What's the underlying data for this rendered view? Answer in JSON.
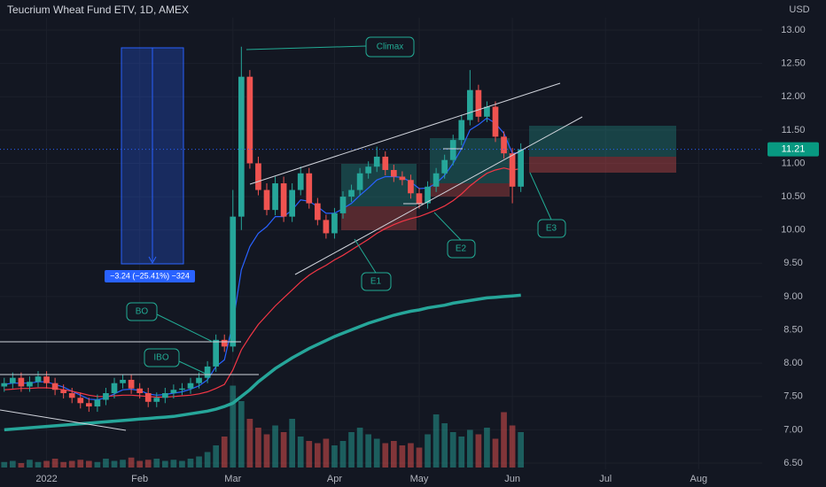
{
  "chart_data": {
    "type": "candlestick",
    "title": "Teucrium Wheat Fund ETV, 1D, AMEX",
    "currency": "USD",
    "last_price": 11.21,
    "annotations": [
      "Climax",
      "BO",
      "IBO",
      "E1",
      "E2",
      "E3"
    ],
    "measure_label": "−3.24 (−25.41%) −324",
    "categories": [
      null,
      null,
      null,
      null,
      null,
      "2022",
      null,
      null,
      null,
      null,
      null,
      null,
      null,
      null,
      null,
      null,
      "Feb",
      null,
      null,
      null,
      null,
      null,
      null,
      null,
      null,
      null,
      null,
      "Mar",
      null,
      null,
      null,
      null,
      null,
      null,
      null,
      null,
      null,
      null,
      null,
      "Apr",
      null,
      null,
      null,
      null,
      null,
      null,
      null,
      null,
      null,
      "May",
      null,
      null,
      null,
      null,
      null,
      null,
      null,
      null,
      null,
      null,
      "Jun",
      null,
      null,
      null,
      null,
      null,
      null,
      null,
      null,
      null,
      null,
      "Jul",
      null,
      null,
      null,
      null,
      null,
      null,
      null,
      null,
      null,
      null,
      "Aug",
      null,
      null,
      null,
      null,
      null,
      null,
      null
    ],
    "open": [
      7.65,
      7.7,
      7.78,
      7.65,
      7.72,
      7.8,
      7.7,
      7.6,
      7.55,
      7.48,
      7.4,
      7.35,
      7.45,
      7.55,
      7.7,
      7.75,
      7.62,
      7.55,
      7.42,
      7.48,
      7.55,
      7.6,
      7.62,
      7.7,
      7.78,
      7.95,
      8.35,
      8.25,
      10.2,
      12.3,
      11.0,
      10.6,
      10.3,
      10.7,
      10.2,
      10.6,
      10.85,
      10.4,
      10.15,
      9.95,
      10.25,
      10.5,
      10.6,
      10.85,
      10.95,
      11.1,
      10.9,
      10.8,
      10.75,
      10.55,
      10.4,
      10.65,
      10.85,
      11.05,
      11.35,
      11.65,
      12.1,
      11.7,
      11.85,
      11.4,
      11.15,
      10.65,
      null,
      null,
      null,
      null,
      null,
      null,
      null,
      null,
      null,
      null,
      null,
      null,
      null,
      null,
      null,
      null,
      null,
      null,
      null,
      null,
      null,
      null,
      null,
      null,
      null,
      null,
      null,
      null
    ],
    "high": [
      7.78,
      7.86,
      7.86,
      7.8,
      7.88,
      7.88,
      7.78,
      7.68,
      7.63,
      7.56,
      7.48,
      7.53,
      7.63,
      7.78,
      7.83,
      7.83,
      7.7,
      7.63,
      7.56,
      7.63,
      7.68,
      7.7,
      7.78,
      7.86,
      8.03,
      8.43,
      8.43,
      10.6,
      12.75,
      12.4,
      11.1,
      10.7,
      10.8,
      10.8,
      10.7,
      10.95,
      10.93,
      10.48,
      10.23,
      10.33,
      10.58,
      10.68,
      10.93,
      11.03,
      11.25,
      11.18,
      10.98,
      10.88,
      10.83,
      10.63,
      10.73,
      10.93,
      11.13,
      11.43,
      11.73,
      12.4,
      12.18,
      11.93,
      11.93,
      11.48,
      11.23,
      11.3,
      null,
      null,
      null,
      null,
      null,
      null,
      null,
      null,
      null,
      null,
      null,
      null,
      null,
      null,
      null,
      null,
      null,
      null,
      null,
      null,
      null,
      null,
      null,
      null,
      null,
      null,
      null,
      null
    ],
    "low": [
      7.57,
      7.62,
      7.57,
      7.57,
      7.64,
      7.62,
      7.52,
      7.47,
      7.4,
      7.32,
      7.27,
      7.27,
      7.37,
      7.47,
      7.62,
      7.54,
      7.47,
      7.34,
      7.34,
      7.4,
      7.47,
      7.52,
      7.54,
      7.62,
      7.7,
      7.87,
      8.17,
      8.17,
      10.0,
      10.92,
      10.52,
      10.22,
      10.22,
      10.12,
      10.12,
      10.52,
      10.32,
      10.07,
      9.87,
      9.87,
      10.17,
      10.42,
      10.52,
      10.77,
      10.87,
      10.82,
      10.72,
      10.67,
      10.47,
      10.32,
      10.32,
      10.57,
      10.77,
      10.97,
      11.27,
      11.57,
      11.62,
      11.62,
      11.32,
      11.07,
      10.4,
      10.57,
      null,
      null,
      null,
      null,
      null,
      null,
      null,
      null,
      null,
      null,
      null,
      null,
      null,
      null,
      null,
      null,
      null,
      null,
      null,
      null,
      null,
      null,
      null,
      null,
      null,
      null,
      null,
      null
    ],
    "close": [
      7.7,
      7.78,
      7.65,
      7.72,
      7.8,
      7.7,
      7.6,
      7.55,
      7.48,
      7.4,
      7.35,
      7.45,
      7.55,
      7.7,
      7.75,
      7.62,
      7.55,
      7.42,
      7.48,
      7.55,
      7.6,
      7.62,
      7.7,
      7.78,
      7.95,
      8.35,
      8.25,
      10.2,
      12.3,
      11.0,
      10.6,
      10.3,
      10.7,
      10.2,
      10.6,
      10.85,
      10.4,
      10.15,
      9.95,
      10.25,
      10.5,
      10.6,
      10.85,
      10.95,
      11.1,
      10.9,
      10.8,
      10.75,
      10.55,
      10.4,
      10.65,
      10.85,
      11.05,
      11.35,
      11.65,
      12.1,
      11.7,
      11.85,
      11.4,
      11.15,
      10.65,
      11.21,
      null,
      null,
      null,
      null,
      null,
      null,
      null,
      null,
      null,
      null,
      null,
      null,
      null,
      null,
      null,
      null,
      null,
      null,
      null,
      null,
      null,
      null,
      null,
      null,
      null,
      null,
      null,
      null
    ],
    "volume": [
      250000,
      300000,
      200000,
      350000,
      250000,
      300000,
      400000,
      250000,
      300000,
      350000,
      300000,
      250000,
      400000,
      300000,
      350000,
      450000,
      300000,
      350000,
      400000,
      300000,
      350000,
      300000,
      400000,
      500000,
      700000,
      1000000,
      1400000,
      3700000,
      3000000,
      2200000,
      1800000,
      1500000,
      1900000,
      1600000,
      2200000,
      1400000,
      1200000,
      1100000,
      1300000,
      1000000,
      1200000,
      1600000,
      1800000,
      1500000,
      1300000,
      1100000,
      1200000,
      1000000,
      1100000,
      900000,
      1500000,
      2400000,
      2000000,
      1600000,
      1400000,
      1700000,
      1500000,
      1800000,
      1300000,
      2500000,
      1900000,
      1600000,
      null,
      null,
      null,
      null,
      null,
      null,
      null,
      null,
      null,
      null,
      null,
      null,
      null,
      null,
      null,
      null,
      null,
      null,
      null,
      null,
      null,
      null,
      null,
      null,
      null,
      null,
      null,
      null
    ],
    "volume_lim": [
      0,
      4000000
    ],
    "up_color": "#26a69a",
    "down_color": "#ef5350",
    "series": [
      {
        "color": "#2962ff",
        "values": [
          7.68,
          7.7,
          7.7,
          7.7,
          7.72,
          7.72,
          7.68,
          7.64,
          7.58,
          7.52,
          7.46,
          7.45,
          7.48,
          7.54,
          7.6,
          7.61,
          7.59,
          7.54,
          7.52,
          7.53,
          7.55,
          7.57,
          7.61,
          7.66,
          7.75,
          7.95,
          8.05,
          8.6,
          9.4,
          9.75,
          9.95,
          10.05,
          10.2,
          10.2,
          10.3,
          10.45,
          10.43,
          10.35,
          10.25,
          10.25,
          10.32,
          10.4,
          10.52,
          10.63,
          10.75,
          10.8,
          10.8,
          10.79,
          10.72,
          10.62,
          10.63,
          10.7,
          10.82,
          11.0,
          11.22,
          11.5,
          11.58,
          11.68,
          11.6,
          11.45,
          11.15,
          11.16,
          null,
          null,
          null,
          null,
          null,
          null,
          null,
          null,
          null,
          null,
          null,
          null,
          null,
          null,
          null,
          null,
          null,
          null,
          null,
          null,
          null,
          null,
          null,
          null,
          null,
          null,
          null,
          null
        ]
      },
      {
        "color": "#f23645",
        "values": [
          7.6,
          7.61,
          7.62,
          7.62,
          7.63,
          7.63,
          7.62,
          7.6,
          7.58,
          7.55,
          7.52,
          7.5,
          7.5,
          7.51,
          7.52,
          7.52,
          7.51,
          7.5,
          7.49,
          7.49,
          7.5,
          7.51,
          7.52,
          7.54,
          7.57,
          7.62,
          7.68,
          7.9,
          8.2,
          8.4,
          8.58,
          8.72,
          8.86,
          8.98,
          9.1,
          9.22,
          9.32,
          9.4,
          9.47,
          9.55,
          9.62,
          9.7,
          9.78,
          9.86,
          9.95,
          10.02,
          10.08,
          10.13,
          10.17,
          10.2,
          10.25,
          10.3,
          10.36,
          10.44,
          10.54,
          10.66,
          10.76,
          10.85,
          10.9,
          10.93,
          10.9,
          10.92,
          null,
          null,
          null,
          null,
          null,
          null,
          null,
          null,
          null,
          null,
          null,
          null,
          null,
          null,
          null,
          null,
          null,
          null,
          null,
          null,
          null,
          null,
          null,
          null,
          null,
          null,
          null,
          null
        ]
      },
      {
        "color": "#26a69a",
        "values": [
          7.0,
          7.01,
          7.02,
          7.03,
          7.04,
          7.05,
          7.06,
          7.07,
          7.08,
          7.09,
          7.1,
          7.11,
          7.12,
          7.13,
          7.14,
          7.15,
          7.16,
          7.17,
          7.18,
          7.19,
          7.2,
          7.22,
          7.24,
          7.26,
          7.28,
          7.31,
          7.35,
          7.4,
          7.5,
          7.6,
          7.72,
          7.82,
          7.92,
          8.0,
          8.08,
          8.15,
          8.22,
          8.28,
          8.34,
          8.4,
          8.45,
          8.5,
          8.55,
          8.6,
          8.64,
          8.68,
          8.72,
          8.75,
          8.78,
          8.8,
          8.83,
          8.85,
          8.87,
          8.9,
          8.92,
          8.94,
          8.96,
          8.98,
          8.99,
          9.0,
          9.01,
          9.02,
          null,
          null,
          null,
          null,
          null,
          null,
          null,
          null,
          null,
          null,
          null,
          null,
          null,
          null,
          null,
          null,
          null,
          null,
          null,
          null,
          null,
          null,
          null,
          null,
          null,
          null,
          null,
          null
        ]
      }
    ],
    "ylim": [
      6.5,
      13.0
    ],
    "yticks": [
      {
        "value": 6.5,
        "label": "6.50"
      },
      {
        "value": 7.0,
        "label": "7.00"
      },
      {
        "value": 7.5,
        "label": "7.50"
      },
      {
        "value": 8.0,
        "label": "8.00"
      },
      {
        "value": 8.5,
        "label": "8.50"
      },
      {
        "value": 9.0,
        "label": "9.00"
      },
      {
        "value": 9.5,
        "label": "9.50"
      },
      {
        "value": 10.0,
        "label": "10.00"
      },
      {
        "value": 10.5,
        "label": "10.50"
      },
      {
        "value": 11.0,
        "label": "11.00"
      },
      {
        "value": 11.5,
        "label": "11.50"
      },
      {
        "value": 12.0,
        "label": "12.00"
      },
      {
        "value": 12.5,
        "label": "12.50"
      },
      {
        "value": 13.0,
        "label": "13.00"
      }
    ],
    "grid": true
  }
}
